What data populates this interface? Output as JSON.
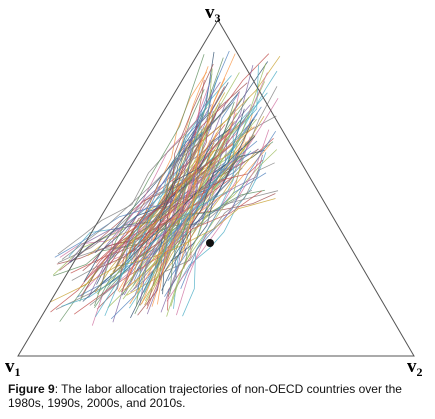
{
  "figure": {
    "vertices": [
      {
        "letter": "v",
        "index": "1"
      },
      {
        "letter": "v",
        "index": "2"
      },
      {
        "letter": "v",
        "index": "3"
      }
    ],
    "caption": {
      "label": "Figure 9",
      "text": ": The labor allocation trajectories of non-OECD countries over the 1980s, 1990s, 2000s, and 2010s."
    }
  }
}
